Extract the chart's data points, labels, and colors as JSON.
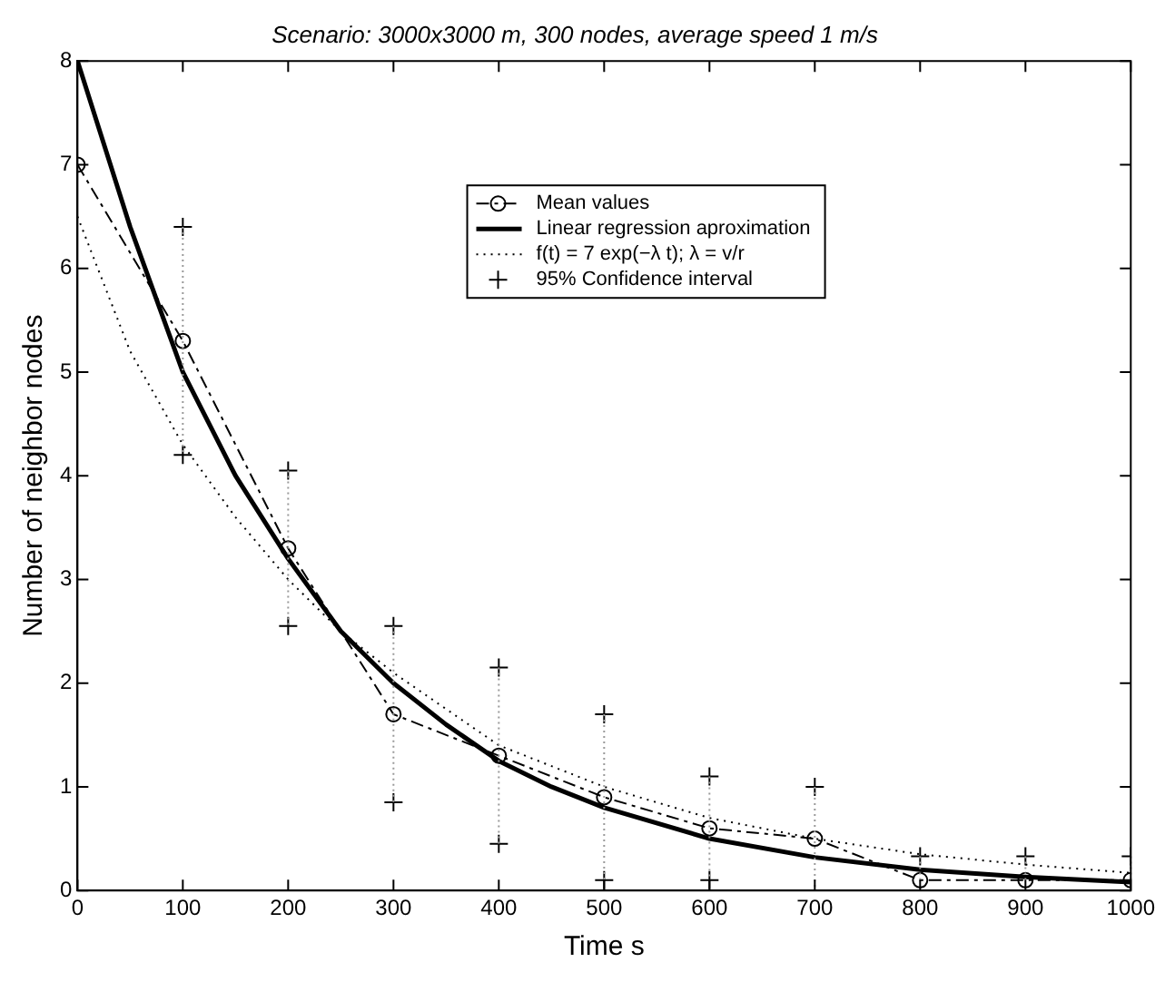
{
  "chart_data": {
    "type": "line",
    "title": "Scenario: 3000x3000 m, 300 nodes, average speed 1 m/s",
    "xlabel": "Time s",
    "ylabel": "Number of neighbor nodes",
    "xlim": [
      0,
      1000
    ],
    "xticks": [
      0,
      100,
      200,
      300,
      400,
      500,
      600,
      700,
      800,
      900,
      {
        "value": 1000,
        "label": "1000"
      }
    ],
    "ylim": [
      0,
      8
    ],
    "yticks": [
      0,
      1,
      2,
      3,
      4,
      5,
      6,
      7,
      8
    ],
    "grid": false,
    "legend": "top right",
    "series": [
      {
        "name": "Mean values",
        "color": "#000000",
        "marker": "circle",
        "line_style": "dashed",
        "x": [
          0,
          100,
          200,
          300,
          400,
          500,
          600,
          700,
          800,
          900,
          1000
        ],
        "values": [
          7,
          5.3,
          3.3,
          1.7,
          1.3,
          0.9,
          0.6,
          0.5,
          0.1,
          0.1,
          0.1
        ],
        "errors": [
          null,
          [
            4.2,
            6.4
          ],
          [
            2.55,
            4.05
          ],
          [
            0.85,
            2.55
          ],
          [
            0.45,
            2.15
          ],
          [
            0.1,
            1.7
          ],
          [
            0.1,
            1.1
          ],
          [
            0,
            1.0
          ],
          [
            0.1,
            0.33
          ],
          [
            0.1,
            0.33
          ],
          [
            0.1,
            0.33
          ]
        ]
      },
      {
        "name": "Linear regression aproximation",
        "color": "#000000",
        "marker": "none",
        "line_style": "solid",
        "x": [
          0,
          50,
          100,
          150,
          200,
          250,
          300,
          350,
          400,
          450,
          500,
          600,
          700,
          800,
          900,
          1000
        ],
        "values": [
          8,
          6.4,
          5.0,
          4.0,
          3.2,
          2.5,
          2.0,
          1.6,
          1.25,
          1.0,
          0.8,
          0.5,
          0.32,
          0.2,
          0.13,
          0.08
        ]
      },
      {
        "name": "f(t) = 7 exp(−λ t); λ = v/r",
        "color": "#000000",
        "marker": "none",
        "line_style": "dotted",
        "x": [
          0,
          50,
          100,
          150,
          200,
          250,
          300,
          400,
          500,
          600,
          700,
          800,
          900,
          1000
        ],
        "values": [
          6.5,
          5.2,
          4.3,
          3.6,
          3.0,
          2.5,
          2.1,
          1.4,
          1.0,
          0.7,
          0.5,
          0.35,
          0.25,
          0.17
        ]
      },
      {
        "name": "95% Confidence interval",
        "type": "scatter",
        "color": "#000000",
        "marker": "cross",
        "x": [
          100,
          100,
          200,
          200,
          300,
          300,
          400,
          400,
          500,
          500,
          600,
          600,
          700,
          800,
          900,
          1000
        ],
        "values": [
          6.4,
          4.2,
          4.05,
          2.55,
          2.55,
          0.85,
          2.15,
          0.45,
          1.7,
          0.1,
          1.1,
          0.1,
          1.0,
          0.33,
          0.33,
          0.33
        ]
      }
    ]
  }
}
